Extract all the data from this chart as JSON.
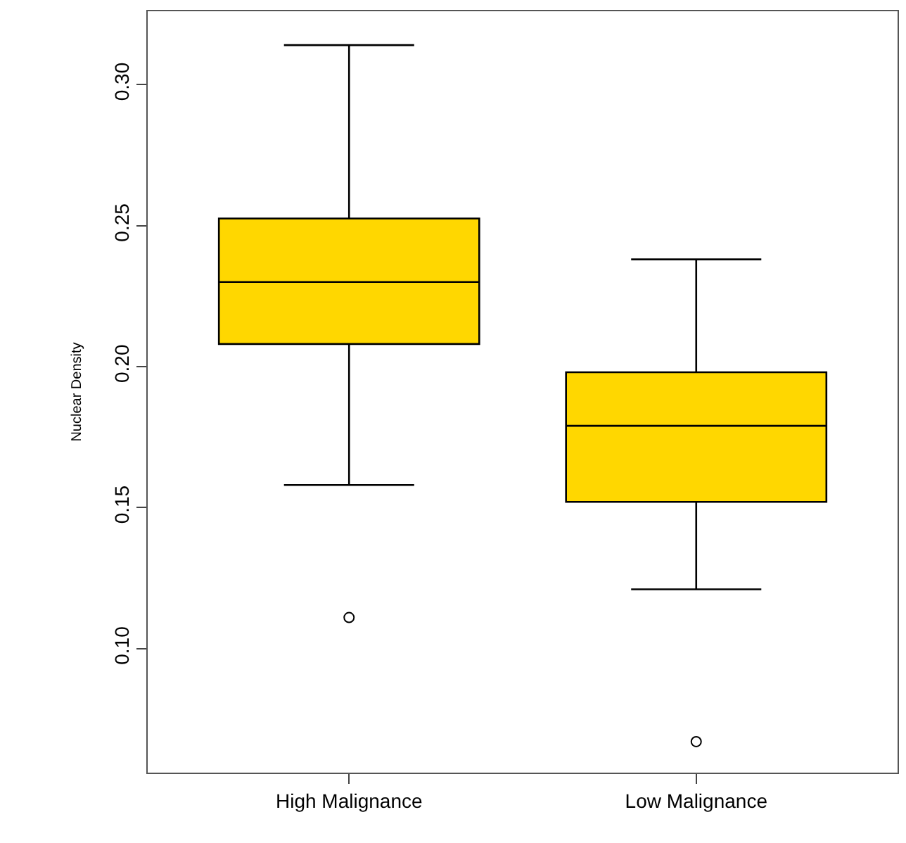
{
  "chart_data": {
    "type": "box",
    "ylabel": "Nuclear Density",
    "categories": [
      "High Malignance",
      "Low Malignance"
    ],
    "boxes": [
      {
        "low": 0.158,
        "q1": 0.208,
        "median": 0.23,
        "q3": 0.2525,
        "high": 0.314,
        "outliers": [
          0.111
        ]
      },
      {
        "low": 0.121,
        "q1": 0.152,
        "median": 0.179,
        "q3": 0.198,
        "high": 0.238,
        "outliers": [
          0.067
        ]
      }
    ],
    "color": "#ffd700",
    "ylim": [
      0.056,
      0.326
    ],
    "yticks": [
      {
        "value": 0.1,
        "label": "0.10"
      },
      0.15,
      {
        "value": 0.2,
        "label": "0.20"
      },
      0.25,
      {
        "value": 0.3,
        "label": "0.30"
      }
    ]
  }
}
